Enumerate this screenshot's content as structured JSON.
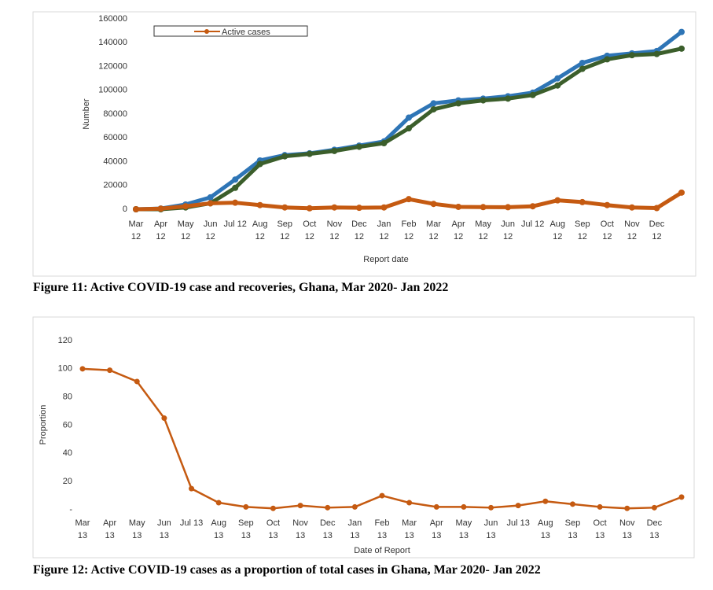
{
  "chart_data": [
    {
      "type": "line",
      "caption": "Figure 11: Active COVID-19 case and recoveries, Ghana, Mar 2020- Jan 2022",
      "xlabel": "Report date",
      "ylabel": "Number",
      "categories": [
        "Mar 12",
        "Apr 12",
        "May 12",
        "Jun 12",
        "Jul 12",
        "Aug 12",
        "Sep 12",
        "Oct 12",
        "Nov 12",
        "Dec 12",
        "Jan 12",
        "Feb 12",
        "Mar 12",
        "Apr 12",
        "May 12",
        "Jun 12",
        "Jul 12",
        "Aug 12",
        "Sep 12",
        "Oct 12",
        "Nov 12",
        "Dec 12",
        null
      ],
      "series": [
        {
          "color": "#2e75b6",
          "values": [
            0,
            600,
            4000,
            10000,
            25000,
            41000,
            45500,
            47000,
            50000,
            53500,
            57000,
            77000,
            89000,
            91500,
            93000,
            95000,
            98000,
            110000,
            123000,
            129000,
            131000,
            133000,
            149000
          ]
        },
        {
          "color": "#3b5e2b",
          "values": [
            0,
            0,
            1500,
            5000,
            18000,
            38000,
            44500,
            46500,
            49000,
            52500,
            55500,
            68000,
            84000,
            89000,
            91500,
            93000,
            96000,
            104000,
            118000,
            126000,
            129500,
            130500,
            135000
          ]
        },
        {
          "name": "Active cases",
          "color": "#c55a11",
          "values": [
            0,
            500,
            2500,
            5000,
            5500,
            3500,
            1500,
            800,
            1500,
            1200,
            1500,
            8500,
            4500,
            2000,
            1800,
            1700,
            2500,
            7500,
            6000,
            3500,
            1500,
            1000,
            14000
          ]
        }
      ],
      "ylim": [
        0,
        160000
      ],
      "yticks": [
        0,
        20000,
        40000,
        60000,
        80000,
        100000,
        120000,
        140000,
        160000
      ],
      "legend": "top-left"
    },
    {
      "type": "line",
      "caption": "Figure 12: Active COVID-19 cases as a proportion of total cases in Ghana, Mar 2020- Jan 2022",
      "xlabel": "Date of Report",
      "ylabel": "Proportion",
      "categories": [
        "Mar 13",
        "Apr 13",
        "May 13",
        "Jun 13",
        "Jul 13",
        "Aug 13",
        "Sep 13",
        "Oct 13",
        "Nov 13",
        "Dec 13",
        "Jan 13",
        "Feb 13",
        "Mar 13",
        "Apr 13",
        "May 13",
        "Jun 13",
        "Jul 13",
        "Aug 13",
        "Sep 13",
        "Oct 13",
        "Nov 13",
        "Dec 13",
        null
      ],
      "series": [
        {
          "color": "#c55a11",
          "values": [
            100,
            99,
            91,
            65,
            15,
            5,
            2,
            1,
            3,
            1.5,
            2,
            10,
            5,
            2,
            2,
            1.5,
            3,
            6,
            4,
            2,
            1,
            1.5,
            9
          ]
        }
      ],
      "ylim": [
        0,
        120
      ],
      "yticks": [
        {
          "value": 0,
          "label": "-"
        },
        20,
        40,
        60,
        80,
        100,
        120
      ]
    }
  ]
}
